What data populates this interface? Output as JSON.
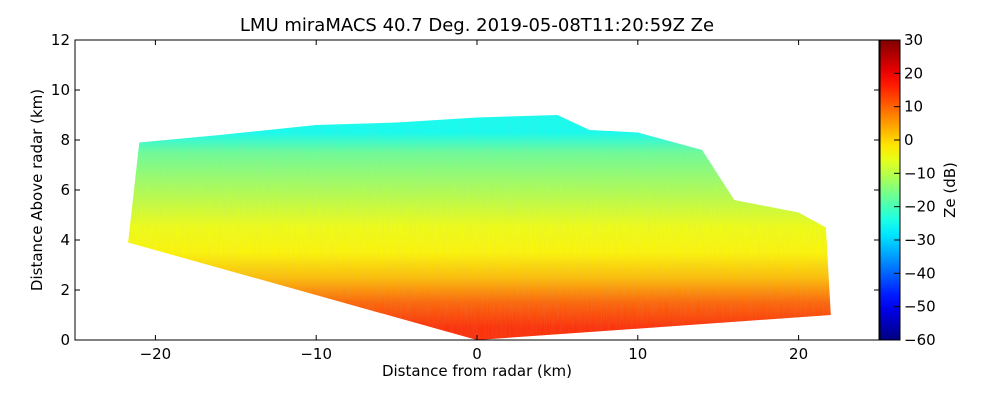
{
  "chart_data": {
    "type": "heatmap",
    "title": "LMU miraMACS 40.7 Deg. 2019-05-08T11:20:59Z  Ze",
    "xlabel": "Distance from radar (km)",
    "ylabel": "Distance Above radar  (km)",
    "xlim": [
      -25,
      25
    ],
    "ylim": [
      0,
      12
    ],
    "xticks": [
      -20,
      -10,
      0,
      10,
      20
    ],
    "xtick_labels": [
      "−20",
      "−10",
      "0",
      "10",
      "20"
    ],
    "yticks": [
      0,
      2,
      4,
      6,
      8,
      10,
      12
    ],
    "ytick_labels": [
      "0",
      "2",
      "4",
      "6",
      "8",
      "10",
      "12"
    ],
    "colorbar": {
      "label": "Ze (dB)",
      "colormap": "jet",
      "range": [
        -60,
        30
      ],
      "ticks": [
        30,
        20,
        10,
        0,
        -10,
        -20,
        -30,
        -40,
        -50,
        -60
      ],
      "tick_labels": [
        "30",
        "20",
        "10",
        "0",
        "−10",
        "−20",
        "−30",
        "−40",
        "−50",
        "−60"
      ]
    },
    "scan_region": {
      "description": "RHI sector scan; echo region bounded below by a slanted line from the radar at (0,0) to (-21.7,3.9) and on the right by the ray to (22,1.0); echo top ~8-9 km",
      "boundary": [
        [
          -21.7,
          3.9
        ],
        [
          -21.0,
          7.9
        ],
        [
          -16,
          8.2
        ],
        [
          -10,
          8.6
        ],
        [
          -5,
          8.7
        ],
        [
          0,
          8.9
        ],
        [
          5,
          9.0
        ],
        [
          7,
          8.4
        ],
        [
          10,
          8.3
        ],
        [
          14,
          7.6
        ],
        [
          16,
          5.6
        ],
        [
          20,
          5.1
        ],
        [
          21.7,
          4.5
        ],
        [
          22,
          1.0
        ],
        [
          0,
          0
        ]
      ],
      "reflectivity_profile_db": [
        {
          "height_km": 0.5,
          "ze_db": 15
        },
        {
          "height_km": 1.5,
          "ze_db": 10
        },
        {
          "height_km": 2.5,
          "ze_db": 2
        },
        {
          "height_km": 3.5,
          "ze_db": -3
        },
        {
          "height_km": 4.5,
          "ze_db": -5
        },
        {
          "height_km": 5.5,
          "ze_db": -9
        },
        {
          "height_km": 6.5,
          "ze_db": -13
        },
        {
          "height_km": 7.5,
          "ze_db": -17
        },
        {
          "height_km": 8.3,
          "ze_db": -25
        }
      ]
    }
  }
}
